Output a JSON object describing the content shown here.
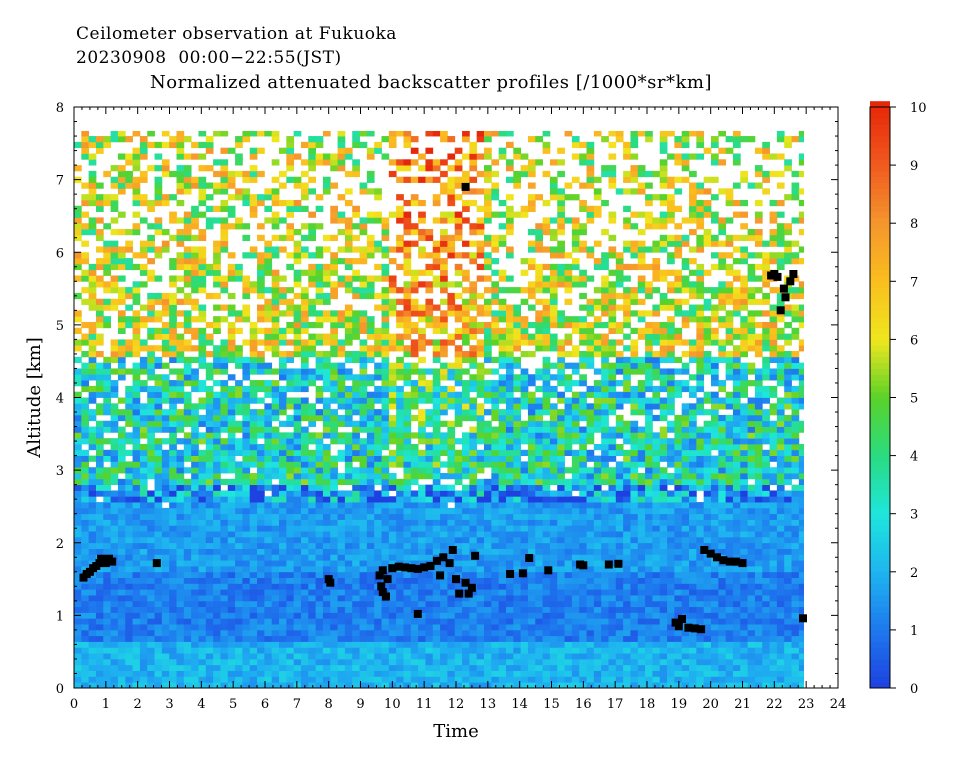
{
  "header": {
    "title": "Ceilometer observation at Fukuoka",
    "date_range": "20230908  00:00−22:55(JST)",
    "subtitle": "Normalized attenuated backscatter profiles [/1000*sr*km]"
  },
  "chart_data": {
    "type": "heatmap",
    "xlabel": "Time",
    "ylabel": "Altitude [km]",
    "xlim": [
      0,
      24
    ],
    "ylim": [
      0,
      8
    ],
    "x_ticks": [
      "0",
      "1",
      "2",
      "3",
      "4",
      "5",
      "6",
      "7",
      "8",
      "9",
      "10",
      "11",
      "12",
      "13",
      "14",
      "15",
      "16",
      "17",
      "18",
      "19",
      "20",
      "21",
      "22",
      "23",
      "24"
    ],
    "y_ticks": [
      "0",
      "1",
      "2",
      "3",
      "4",
      "5",
      "6",
      "7",
      "8"
    ],
    "data_extent": {
      "x": [
        0,
        22.92
      ],
      "y": [
        0,
        7.67
      ]
    },
    "colorbar": {
      "range": [
        0,
        10
      ],
      "ticks": [
        "0",
        "1",
        "2",
        "3",
        "4",
        "5",
        "6",
        "7",
        "8",
        "9",
        "10"
      ],
      "colors": [
        "#1e40e0",
        "#1e78ee",
        "#1eb4f0",
        "#1ee6dc",
        "#28dc82",
        "#5ad228",
        "#f0e61e",
        "#fabe1e",
        "#f5962d",
        "#f05a1e",
        "#e6280a"
      ]
    },
    "description_layers": [
      {
        "from": 0,
        "to": 0.6,
        "level": 2.0
      },
      {
        "from": 0.6,
        "to": 1.6,
        "level": 1.1
      },
      {
        "from": 1.6,
        "to": 2.8,
        "level": 1.6
      },
      {
        "from": 2.8,
        "to": 4.5,
        "level": 3.2
      },
      {
        "from": 4.5,
        "to": 7.67,
        "level": 5.8
      }
    ],
    "cloud_base_points": [
      {
        "x": 0.3,
        "y": 1.52
      },
      {
        "x": 0.4,
        "y": 1.57
      },
      {
        "x": 0.5,
        "y": 1.6
      },
      {
        "x": 0.6,
        "y": 1.65
      },
      {
        "x": 0.7,
        "y": 1.68
      },
      {
        "x": 0.8,
        "y": 1.72
      },
      {
        "x": 0.9,
        "y": 1.75
      },
      {
        "x": 1.0,
        "y": 1.72
      },
      {
        "x": 1.1,
        "y": 1.78
      },
      {
        "x": 1.2,
        "y": 1.74
      },
      {
        "x": 0.85,
        "y": 1.78
      },
      {
        "x": 2.6,
        "y": 1.72
      },
      {
        "x": 8.0,
        "y": 1.5
      },
      {
        "x": 8.05,
        "y": 1.45
      },
      {
        "x": 9.6,
        "y": 1.55
      },
      {
        "x": 9.7,
        "y": 1.62
      },
      {
        "x": 9.65,
        "y": 1.4
      },
      {
        "x": 9.7,
        "y": 1.32
      },
      {
        "x": 9.8,
        "y": 1.26
      },
      {
        "x": 9.85,
        "y": 1.5
      },
      {
        "x": 10.0,
        "y": 1.65
      },
      {
        "x": 10.2,
        "y": 1.67
      },
      {
        "x": 10.4,
        "y": 1.66
      },
      {
        "x": 10.6,
        "y": 1.65
      },
      {
        "x": 10.8,
        "y": 1.64
      },
      {
        "x": 11.0,
        "y": 1.66
      },
      {
        "x": 11.2,
        "y": 1.68
      },
      {
        "x": 11.4,
        "y": 1.75
      },
      {
        "x": 11.5,
        "y": 1.55
      },
      {
        "x": 11.6,
        "y": 1.8
      },
      {
        "x": 11.8,
        "y": 1.72
      },
      {
        "x": 11.9,
        "y": 1.9
      },
      {
        "x": 12.0,
        "y": 1.5
      },
      {
        "x": 12.1,
        "y": 1.3
      },
      {
        "x": 12.3,
        "y": 1.45
      },
      {
        "x": 12.4,
        "y": 1.3
      },
      {
        "x": 12.5,
        "y": 1.38
      },
      {
        "x": 12.6,
        "y": 1.82
      },
      {
        "x": 10.8,
        "y": 1.02
      },
      {
        "x": 12.3,
        "y": 6.9
      },
      {
        "x": 13.7,
        "y": 1.57
      },
      {
        "x": 14.1,
        "y": 1.58
      },
      {
        "x": 14.3,
        "y": 1.79
      },
      {
        "x": 14.9,
        "y": 1.62
      },
      {
        "x": 15.9,
        "y": 1.7
      },
      {
        "x": 16.0,
        "y": 1.69
      },
      {
        "x": 16.8,
        "y": 1.7
      },
      {
        "x": 17.1,
        "y": 1.71
      },
      {
        "x": 18.9,
        "y": 0.9
      },
      {
        "x": 19.0,
        "y": 0.85
      },
      {
        "x": 19.1,
        "y": 0.95
      },
      {
        "x": 19.3,
        "y": 0.83
      },
      {
        "x": 19.5,
        "y": 0.82
      },
      {
        "x": 19.7,
        "y": 0.81
      },
      {
        "x": 19.8,
        "y": 1.9
      },
      {
        "x": 20.0,
        "y": 1.85
      },
      {
        "x": 20.2,
        "y": 1.8
      },
      {
        "x": 20.4,
        "y": 1.76
      },
      {
        "x": 20.6,
        "y": 1.74
      },
      {
        "x": 20.8,
        "y": 1.74
      },
      {
        "x": 21.0,
        "y": 1.72
      },
      {
        "x": 21.9,
        "y": 5.68
      },
      {
        "x": 22.0,
        "y": 5.7
      },
      {
        "x": 22.1,
        "y": 5.66
      },
      {
        "x": 22.3,
        "y": 5.5
      },
      {
        "x": 22.35,
        "y": 5.38
      },
      {
        "x": 22.5,
        "y": 5.6
      },
      {
        "x": 22.6,
        "y": 5.7
      },
      {
        "x": 22.2,
        "y": 5.2
      },
      {
        "x": 22.9,
        "y": 0.96
      }
    ]
  }
}
